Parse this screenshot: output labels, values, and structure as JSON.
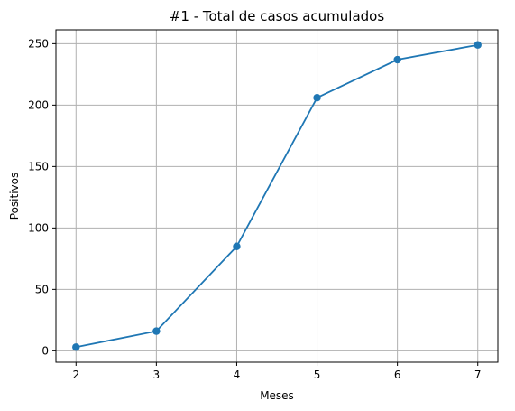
{
  "chart_data": {
    "type": "line",
    "title": "#1 - Total de casos acumulados",
    "xlabel": "Meses",
    "ylabel": "Positivos",
    "x": [
      2,
      3,
      4,
      5,
      6,
      7
    ],
    "series": [
      {
        "values": [
          3,
          16,
          85,
          206,
          237,
          249
        ],
        "color": "#1f77b4"
      }
    ],
    "xticks": [
      "2",
      "3",
      "4",
      "5",
      "6",
      "7"
    ],
    "yticks": [
      "0",
      "50",
      "100",
      "150",
      "200",
      "250"
    ],
    "xlim": [
      1.75,
      7.25
    ],
    "ylim": [
      -9.3,
      261.3
    ],
    "grid": true
  }
}
